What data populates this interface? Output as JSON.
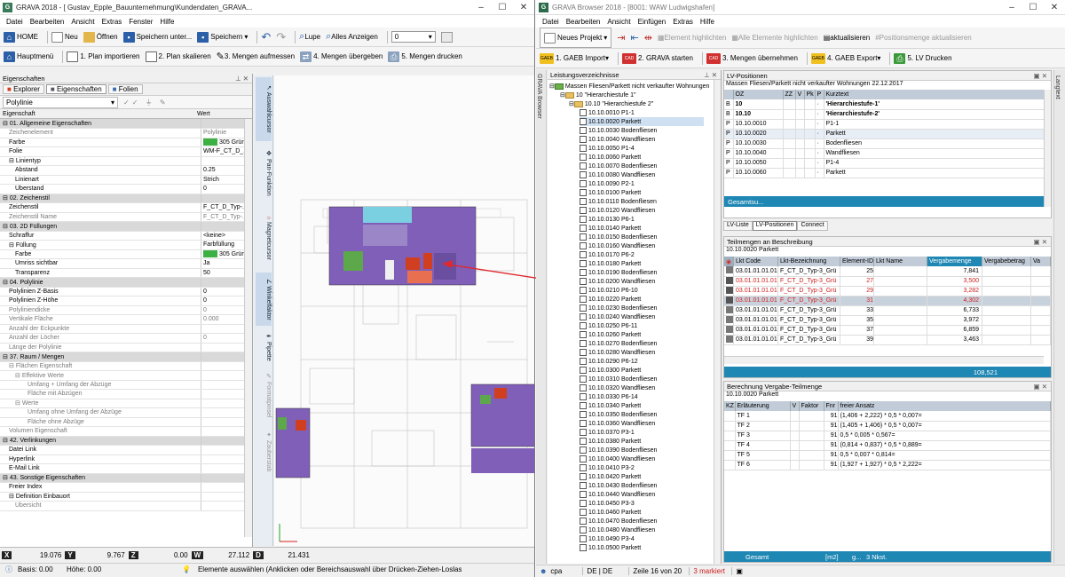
{
  "left": {
    "title": "GRAVA 2018 - [ Gustav_Epple_Bauunternehmung\\Kundendaten_GRAVA...",
    "menu": [
      "Datei",
      "Bearbeiten",
      "Ansicht",
      "Extras",
      "Fenster",
      "Hilfe"
    ],
    "toolbar1": {
      "home": "HOME",
      "neu": "Neu",
      "oeffnen": "Öffnen",
      "speichern_unter": "Speichern unter...",
      "speichern": "Speichern",
      "lupe": "Lupe",
      "alles": "Alles Anzeigen",
      "layer": "0"
    },
    "toolbar2": {
      "hauptmenue": "Hauptmenü",
      "s1": "1. Plan importieren",
      "s2": "2. Plan skalieren",
      "s3": "3. Mengen aufmessen",
      "s4": "4. Mengen übergeben",
      "s5": "5. Mengen drucken"
    },
    "panel_title": "Eigenschaften",
    "tabs": [
      "Explorer",
      "Eigenschaften",
      "Folien"
    ],
    "object_type": "Polylinie",
    "col_prop": "Eigenschaft",
    "col_val": "Wert",
    "rows": [
      {
        "c": 1,
        "k": "01. Allgemeine Eigenschaften",
        "v": ""
      },
      {
        "c": 0,
        "g": 1,
        "k": "Zeichenelement",
        "v": "Polylinie",
        "i": 1
      },
      {
        "c": 0,
        "k": "Farbe",
        "v": "305  Grün 1.",
        "i": 1,
        "sw": "#3cb043"
      },
      {
        "c": 0,
        "k": "Folie",
        "v": "WM-F_CT_D_...",
        "i": 1
      },
      {
        "c": 1,
        "k": "Linientyp",
        "v": "",
        "i": 1
      },
      {
        "c": 0,
        "k": "Abstand",
        "v": "0.25",
        "i": 2
      },
      {
        "c": 0,
        "k": "Linienart",
        "v": "Strich",
        "i": 2
      },
      {
        "c": 0,
        "k": "Überstand",
        "v": "0",
        "i": 2
      },
      {
        "c": 1,
        "k": "02. Zeichenstil",
        "v": ""
      },
      {
        "c": 0,
        "k": "Zeichenstil",
        "v": "F_CT_D_Typ-...",
        "i": 1
      },
      {
        "c": 0,
        "g": 1,
        "k": "Zeichenstil Name",
        "v": "F_CT_D_Typ-...",
        "i": 1
      },
      {
        "c": 1,
        "k": "03. 2D Füllungen",
        "v": ""
      },
      {
        "c": 0,
        "k": "Schraffur",
        "v": "<keine>",
        "i": 1
      },
      {
        "c": 1,
        "k": "Füllung",
        "v": "Farbfüllung",
        "i": 1
      },
      {
        "c": 0,
        "k": "Farbe",
        "v": "305  Grün 1.",
        "i": 2,
        "sw": "#3cb043"
      },
      {
        "c": 0,
        "k": "Umriss sichtbar",
        "v": "Ja",
        "i": 2
      },
      {
        "c": 0,
        "k": "Transparenz",
        "v": "50",
        "i": 2
      },
      {
        "c": 1,
        "k": "04. Polylinie",
        "v": ""
      },
      {
        "c": 0,
        "k": "Polylinien Z-Basis",
        "v": "0",
        "i": 1
      },
      {
        "c": 0,
        "k": "Polylinien Z-Höhe",
        "v": "0",
        "i": 1
      },
      {
        "c": 0,
        "g": 1,
        "k": "Polyliniendicke",
        "v": "0",
        "i": 1
      },
      {
        "c": 0,
        "g": 1,
        "k": "Vertikale Fläche",
        "v": "0.000",
        "i": 1
      },
      {
        "c": 0,
        "g": 1,
        "k": "Anzahl der Eckpunkte",
        "v": "",
        "i": 1
      },
      {
        "c": 0,
        "g": 1,
        "k": "Anzahl der Löcher",
        "v": "0",
        "i": 1
      },
      {
        "c": 0,
        "g": 1,
        "k": "Länge der Polylinie",
        "v": "",
        "i": 1
      },
      {
        "c": 1,
        "k": "37. Raum / Mengen",
        "v": ""
      },
      {
        "c": 1,
        "g": 1,
        "k": "Flächen Eigenschaft",
        "v": "",
        "i": 1
      },
      {
        "c": 1,
        "g": 1,
        "k": "Effektive Werte",
        "v": "",
        "i": 2
      },
      {
        "c": 0,
        "g": 1,
        "k": "Umfang + Umfang der Abzüge",
        "v": "",
        "i": 4
      },
      {
        "c": 0,
        "g": 1,
        "k": "Fläche mit Abzügen",
        "v": "",
        "i": 4
      },
      {
        "c": 1,
        "g": 1,
        "k": "Werte",
        "v": "",
        "i": 2
      },
      {
        "c": 0,
        "g": 1,
        "k": "Umfang ohne Umfang der Abzüge",
        "v": "",
        "i": 4
      },
      {
        "c": 0,
        "g": 1,
        "k": "Fläche ohne Abzüge",
        "v": "",
        "i": 4
      },
      {
        "c": 0,
        "g": 1,
        "k": "Volumen Eigenschaft",
        "v": "",
        "i": 1
      },
      {
        "c": 1,
        "k": "42. Verlinkungen",
        "v": ""
      },
      {
        "c": 0,
        "k": "Datei Link",
        "v": "",
        "i": 1
      },
      {
        "c": 0,
        "k": "Hyperlink",
        "v": "",
        "i": 1
      },
      {
        "c": 0,
        "k": "E-Mail Link",
        "v": "",
        "i": 1
      },
      {
        "c": 1,
        "k": "43. Sonstige Eigenschaften",
        "v": ""
      },
      {
        "c": 0,
        "k": "Freier Index",
        "v": "",
        "i": 1
      },
      {
        "c": 1,
        "k": "Definition Einbauort",
        "v": "",
        "i": 1
      },
      {
        "c": 0,
        "g": 1,
        "k": "Übersicht",
        "v": "",
        "i": 2
      }
    ],
    "sidetabs": [
      "Auswahlcursor",
      "Pan-Funktion",
      "Magnetcursor",
      "Winkelfaktor",
      "Pipette",
      "Formatpinsel",
      "Zauberstab"
    ],
    "coords": {
      "x": "19.076",
      "y": "9.767",
      "z": "0.00",
      "w": "27.112",
      "d": "21.431"
    },
    "status": {
      "basis": "Basis: 0.00",
      "hoehe": "Höhe: 0.00",
      "hint": "Elemente auswählen (Anklicken oder Bereichsauswahl über Drücken-Ziehen-Loslas"
    }
  },
  "right": {
    "title": "GRAVA Browser 2018 - [8001: WAW Ludwigshafen]",
    "menu": [
      "Datei",
      "Bearbeiten",
      "Ansicht",
      "Einfügen",
      "Extras",
      "Hilfe"
    ],
    "toolbar1": {
      "neues_projekt": "Neues Projekt",
      "highlight": "Element highlichten",
      "highlight_all": "Alle Elemente highlichten",
      "aktualisieren": "aktualisieren",
      "pos_akt": "Positionsmenge aktualisieren"
    },
    "toolbar2": {
      "s1": "1. GAEB Import",
      "s2": "2. GRAVA starten",
      "s3": "3. Mengen übernehmen",
      "s4": "4. GAEB Export",
      "s5": "5. LV Drucken"
    },
    "side_label": "GRAVA Browser",
    "right_side_label": "Langtext",
    "tree_title": "Leistungsverzeichnisse",
    "tree_root": "Massen Fliesen/Parkett nicht verkaufter Wohnungen",
    "tree_l1": "10  \"Hierarchiestufe 1\"",
    "tree_l2": "10.10  \"Hierarchiestufe 2\"",
    "tree_items": [
      "10.10.0010  P1-1",
      "10.10.0020  Parkett",
      "10.10.0030  Bodenfliesen",
      "10.10.0040  Wandfliesen",
      "10.10.0050  P1-4",
      "10.10.0060  Parkett",
      "10.10.0070  Bodenfliesen",
      "10.10.0080  Wandfliesen",
      "10.10.0090  P2-1",
      "10.10.0100  Parkett",
      "10.10.0110  Bodenfliesen",
      "10.10.0120  Wandfliesen",
      "10.10.0130  P6-1",
      "10.10.0140  Parkett",
      "10.10.0150  Bodenfliesen",
      "10.10.0160  Wandfliesen",
      "10.10.0170  P6-2",
      "10.10.0180  Parkett",
      "10.10.0190  Bodenfliesen",
      "10.10.0200  Wandfliesen",
      "10.10.0210  P6-10",
      "10.10.0220  Parkett",
      "10.10.0230  Bodenfliesen",
      "10.10.0240  Wandfliesen",
      "10.10.0250  P6-11",
      "10.10.0260  Parkett",
      "10.10.0270  Bodenfliesen",
      "10.10.0280  Wandfliesen",
      "10.10.0290  P6-12",
      "10.10.0300  Parkett",
      "10.10.0310  Bodenfliesen",
      "10.10.0320  Wandfliesen",
      "10.10.0330  P6-14",
      "10.10.0340  Parkett",
      "10.10.0350  Bodenfliesen",
      "10.10.0360  Wandfliesen",
      "10.10.0370  P3-1",
      "10.10.0380  Parkett",
      "10.10.0390  Bodenfliesen",
      "10.10.0400  Wandfliesen",
      "10.10.0410  P3-2",
      "10.10.0420  Parkett",
      "10.10.0430  Bodenfliesen",
      "10.10.0440  Wandfliesen",
      "10.10.0450  P3-3",
      "10.10.0460  Parkett",
      "10.10.0470  Bodenfliesen",
      "10.10.0480  Wandfliesen",
      "10.10.0490  P3-4",
      "10.10.0500  Parkett"
    ],
    "lv": {
      "title": "LV-Positionen",
      "subtitle": "Massen Fliesen/Parkett nicht verkaufter Wohnungen 22.12.2017",
      "cols": [
        "OZ",
        "ZZ",
        "V",
        "Pk",
        "P",
        "Kurztext"
      ],
      "rows": [
        {
          "t": "B",
          "oz": "10",
          "k": "'Hierarchiestufe-1'",
          "b": 1
        },
        {
          "t": "B",
          "oz": "10.10",
          "k": "'Hierarchiestufe-2'",
          "b": 1
        },
        {
          "t": "P",
          "oz": "10.10.0010",
          "k": "P1-1"
        },
        {
          "t": "P",
          "oz": "10.10.0020",
          "k": "Parkett",
          "sel": 1
        },
        {
          "t": "P",
          "oz": "10.10.0030",
          "k": "Bodenfliesen"
        },
        {
          "t": "P",
          "oz": "10.10.0040",
          "k": "Wandfliesen"
        },
        {
          "t": "P",
          "oz": "10.10.0050",
          "k": "P1-4"
        },
        {
          "t": "P",
          "oz": "10.10.0060",
          "k": "Parkett"
        }
      ],
      "footer": "Gesamtsu...",
      "tabs": [
        "LV-Liste",
        "LV-Positionen",
        "Connect"
      ]
    },
    "teil": {
      "title": "Teilmengen an Beschreibung",
      "pos": "10.10.0020 Parkett",
      "cols": [
        "Lkt Code",
        "Lkt-Bezeichnung",
        "Element-ID",
        "Lkt Name",
        "Vergabemenge",
        "Vergabebetrag",
        "Va"
      ],
      "rows": [
        {
          "code": "03.01.01.01.01",
          "bez": "F_CT_D_Typ-3_Grü",
          "id": "25",
          "m": "7,841"
        },
        {
          "code": "03.01.01.01.01",
          "bez": "F_CT_D_Typ-3_Grü",
          "id": "27",
          "m": "3,500",
          "r": 1
        },
        {
          "code": "03.01.01.01.01",
          "bez": "F_CT_D_Typ-3_Grü",
          "id": "29",
          "m": "3,282",
          "r": 1
        },
        {
          "code": "03.01.01.01.01",
          "bez": "F_CT_D_Typ-3_Grü",
          "id": "31",
          "m": "4,302",
          "r": 1,
          "sel": 1
        },
        {
          "code": "03.01.01.01.01",
          "bez": "F_CT_D_Typ-3_Grü",
          "id": "33",
          "m": "6,733"
        },
        {
          "code": "03.01.01.01.01",
          "bez": "F_CT_D_Typ-3_Grü",
          "id": "35",
          "m": "3,972"
        },
        {
          "code": "03.01.01.01.01",
          "bez": "F_CT_D_Typ-3_Grü",
          "id": "37",
          "m": "6,859"
        },
        {
          "code": "03.01.01.01.01",
          "bez": "F_CT_D_Typ-3_Grü",
          "id": "39",
          "m": "3,463"
        }
      ],
      "total": "108,521"
    },
    "ber": {
      "title": "Berechnung Vergabe-Teilmenge",
      "pos": "10.10.0020 Parkett",
      "cols": [
        "KZ",
        "Erläuterung",
        "V",
        "Faktor",
        "Fnr",
        "freier Ansatz"
      ],
      "rows": [
        {
          "e": "TF 1",
          "f": "91",
          "a": "(1,406 + 2,222) * 0,5 * 0,007="
        },
        {
          "e": "TF 2",
          "f": "91",
          "a": "(1,405 + 1,406) * 0,5 * 0,007="
        },
        {
          "e": "TF 3",
          "f": "91",
          "a": "0,5 * 0,005 * 0,567="
        },
        {
          "e": "TF 4",
          "f": "91",
          "a": "(0,814 + 0,837) * 0,5 * 0,889="
        },
        {
          "e": "TF 5",
          "f": "91",
          "a": "0,5 * 0,007 * 0,814="
        },
        {
          "e": "TF 6",
          "f": "91",
          "a": "(1,927 + 1,927) * 0,5 * 2,222="
        }
      ],
      "footer": {
        "label": "Gesamt",
        "unit": "[m2]",
        "g": "g...",
        "n": "3 Nkst."
      }
    },
    "status": {
      "user": "cpa",
      "lang": "DE | DE",
      "row": "Zeile 16 von 20",
      "marked": "3 markiert"
    }
  }
}
